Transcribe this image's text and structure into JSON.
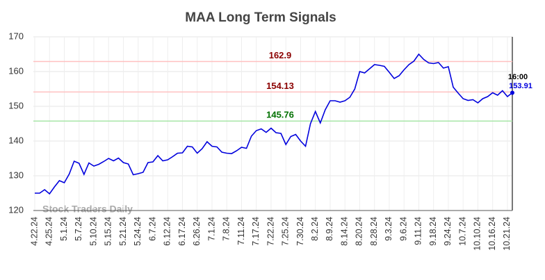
{
  "chart_data": {
    "type": "line",
    "title": "MAA Long Term Signals",
    "categories": [
      "4.22.24",
      null,
      null,
      "4.25.24",
      null,
      null,
      "5.1.24",
      null,
      null,
      "5.7.24",
      null,
      null,
      "5.10.24",
      null,
      null,
      "5.15.24",
      null,
      null,
      "5.21.24",
      null,
      null,
      "5.24.24",
      null,
      null,
      "6.7.24",
      null,
      null,
      "6.12.24",
      null,
      null,
      "6.17.24",
      null,
      null,
      "6.26.24",
      null,
      null,
      "7.1.24",
      null,
      null,
      "7.8.24",
      null,
      null,
      "7.11.24",
      null,
      null,
      "7.17.24",
      null,
      null,
      "7.22.24",
      null,
      null,
      "7.25.24",
      null,
      null,
      "7.30.24",
      null,
      null,
      "8.2.24",
      null,
      null,
      "8.9.24",
      null,
      null,
      "8.14.24",
      null,
      null,
      "8.20.24",
      null,
      null,
      "8.28.24",
      null,
      null,
      "9.3.24",
      null,
      null,
      "9.6.24",
      null,
      null,
      "9.11.24",
      null,
      null,
      "9.18.24",
      null,
      null,
      "9.24.24",
      null,
      null,
      "10.7.24",
      null,
      null,
      "10.10.24",
      null,
      null,
      "10.16.24",
      null,
      null,
      "10.21.24",
      null
    ],
    "values": [
      125,
      125,
      126,
      124.8,
      126.8,
      128.6,
      128,
      130.5,
      134.2,
      133.6,
      130.4,
      133.7,
      132.8,
      133.3,
      134.1,
      135,
      134.3,
      135.1,
      133.8,
      133.4,
      130.3,
      130.6,
      131,
      133.8,
      134,
      135.8,
      134.3,
      134.6,
      135.5,
      136.5,
      136.6,
      138.5,
      138.3,
      136.5,
      137.8,
      139.8,
      138.5,
      138.3,
      136.8,
      136.5,
      136.4,
      137.2,
      138.2,
      137.9,
      141.4,
      143,
      143.5,
      142.5,
      143.7,
      142.4,
      142.2,
      139,
      141.3,
      141.9,
      140,
      138.5,
      145,
      148.5,
      145.2,
      149,
      151.6,
      151.6,
      151.2,
      151.6,
      152.6,
      155,
      160,
      159.6,
      160.8,
      162,
      161.8,
      161.5,
      159.8,
      158,
      158.8,
      160.5,
      162,
      163,
      165,
      163.5,
      162.5,
      162.3,
      162.6,
      161,
      161.4,
      155.5,
      153.8,
      152.2,
      151.7,
      151.9,
      151,
      152.2,
      152.8,
      153.9,
      153.2,
      154.5,
      152.8,
      153.91
    ],
    "color": "#0000dd",
    "ylim": [
      120,
      170
    ],
    "yticks": [
      120,
      130,
      140,
      150,
      160,
      170
    ],
    "grid": true,
    "levels": [
      {
        "value": 162.9,
        "color": "#8b0000",
        "line_color": "#ffc0c0"
      },
      {
        "value": 154.13,
        "color": "#8b0000",
        "line_color": "#ffc0c0"
      },
      {
        "value": 145.76,
        "color": "#007000",
        "line_color": "#a8e6a8"
      }
    ],
    "last_time": "16:00",
    "watermark": "Stock Traders Daily"
  }
}
